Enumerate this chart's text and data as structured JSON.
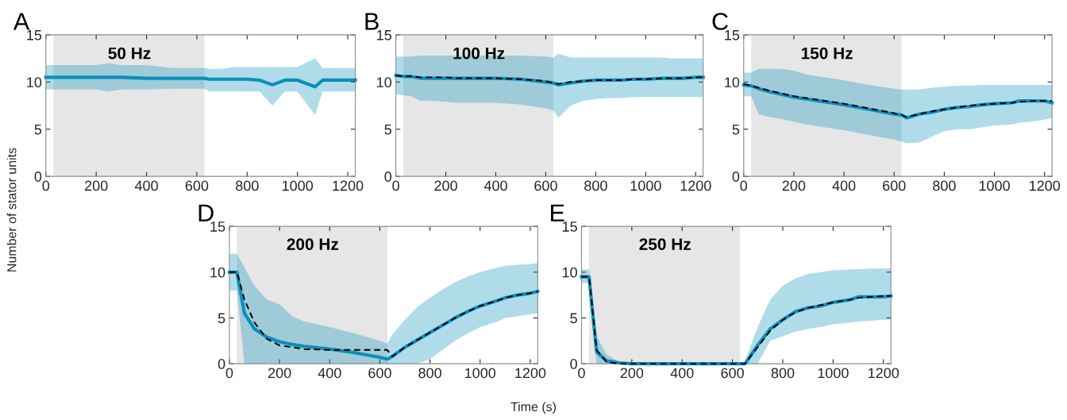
{
  "chart_data": [
    {
      "type": "line",
      "annotations": [
        "A",
        "50 Hz"
      ],
      "ylabel": "Number of stator units",
      "x": [
        0,
        30,
        60,
        100,
        150,
        200,
        250,
        300,
        400,
        500,
        600,
        630,
        650,
        700,
        750,
        800,
        850,
        900,
        950,
        1000,
        1070,
        1100,
        1150,
        1200,
        1230
      ],
      "xlim": [
        0,
        1230
      ],
      "ylim": [
        0,
        15
      ],
      "xticks": [
        0,
        200,
        400,
        600,
        800,
        1000,
        1200
      ],
      "yticks": [
        0,
        5,
        10,
        15
      ],
      "grid": false,
      "bands": [
        {
          "axis": "x",
          "from": 30,
          "to": 630,
          "color": "#e6e6e6"
        }
      ],
      "series": [
        {
          "color": "#0a8fba",
          "line_style": "solid",
          "values": [
            10.5,
            10.5,
            10.5,
            10.5,
            10.5,
            10.5,
            10.5,
            10.5,
            10.4,
            10.4,
            10.4,
            10.4,
            10.3,
            10.3,
            10.3,
            10.3,
            10.2,
            9.7,
            10.2,
            10.2,
            9.5,
            10.2,
            10.2,
            10.2,
            10.2
          ],
          "lower": [
            9.2,
            9.2,
            9.2,
            9.2,
            9.2,
            9.2,
            9.0,
            9.2,
            9.2,
            9.3,
            9.3,
            9.3,
            9.0,
            9.0,
            9.0,
            9.0,
            9.0,
            7.5,
            9.0,
            9.0,
            6.5,
            9.0,
            9.0,
            9.0,
            9.0
          ],
          "upper": [
            11.8,
            11.8,
            11.8,
            11.8,
            11.8,
            11.8,
            12.0,
            11.8,
            11.8,
            11.5,
            11.5,
            11.5,
            11.4,
            11.4,
            11.6,
            11.6,
            11.6,
            11.6,
            11.6,
            11.6,
            12.5,
            11.5,
            11.5,
            11.5,
            11.5
          ]
        }
      ]
    },
    {
      "type": "line",
      "annotations": [
        "B",
        "100 Hz"
      ],
      "x": [
        0,
        30,
        60,
        100,
        150,
        200,
        250,
        300,
        400,
        500,
        600,
        630,
        650,
        700,
        750,
        800,
        850,
        900,
        950,
        1000,
        1070,
        1100,
        1150,
        1200,
        1230
      ],
      "xlim": [
        0,
        1230
      ],
      "ylim": [
        0,
        15
      ],
      "xticks": [
        0,
        200,
        400,
        600,
        800,
        1000,
        1200
      ],
      "yticks": [
        0,
        5,
        10,
        15
      ],
      "grid": false,
      "bands": [
        {
          "axis": "x",
          "from": 30,
          "to": 630,
          "color": "#e6e6e6"
        }
      ],
      "series": [
        {
          "color": "#0a8fba",
          "line_style": "solid",
          "values": [
            10.7,
            10.6,
            10.6,
            10.4,
            10.4,
            10.4,
            10.4,
            10.4,
            10.4,
            10.3,
            10.0,
            9.9,
            9.7,
            9.9,
            10.1,
            10.2,
            10.2,
            10.2,
            10.3,
            10.3,
            10.4,
            10.4,
            10.4,
            10.5,
            10.5
          ],
          "lower": [
            8.7,
            8.6,
            8.5,
            8.0,
            8.0,
            7.9,
            7.8,
            7.8,
            7.8,
            7.6,
            7.2,
            7.0,
            6.2,
            7.5,
            8.0,
            8.2,
            8.3,
            8.3,
            8.4,
            8.4,
            8.4,
            8.4,
            8.4,
            8.4,
            8.4
          ],
          "upper": [
            12.7,
            12.7,
            12.7,
            12.8,
            12.8,
            12.8,
            12.8,
            12.8,
            12.8,
            12.8,
            12.7,
            12.6,
            13.0,
            12.6,
            12.6,
            12.6,
            12.6,
            12.6,
            12.6,
            12.6,
            12.6,
            12.5,
            12.5,
            12.5,
            12.5
          ]
        },
        {
          "color": "#000000",
          "line_style": "dashed",
          "values": [
            10.7,
            10.6,
            10.6,
            10.5,
            10.5,
            10.5,
            10.4,
            10.4,
            10.4,
            10.3,
            10.1,
            9.9,
            9.8,
            10.0,
            10.1,
            10.2,
            10.2,
            10.2,
            10.3,
            10.3,
            10.4,
            10.4,
            10.4,
            10.5,
            10.5
          ]
        }
      ]
    },
    {
      "type": "line",
      "annotations": [
        "C",
        "150 Hz"
      ],
      "x": [
        0,
        30,
        60,
        100,
        150,
        200,
        250,
        300,
        400,
        500,
        600,
        630,
        650,
        700,
        750,
        800,
        850,
        900,
        950,
        1000,
        1070,
        1100,
        1150,
        1200,
        1230
      ],
      "xlim": [
        0,
        1230
      ],
      "ylim": [
        0,
        15
      ],
      "xticks": [
        0,
        200,
        400,
        600,
        800,
        1000,
        1200
      ],
      "yticks": [
        0,
        5,
        10,
        15
      ],
      "grid": false,
      "bands": [
        {
          "axis": "x",
          "from": 30,
          "to": 630,
          "color": "#e6e6e6"
        }
      ],
      "series": [
        {
          "color": "#0a8fba",
          "line_style": "solid",
          "values": [
            9.7,
            9.6,
            9.3,
            9.0,
            8.7,
            8.4,
            8.2,
            8.0,
            7.6,
            7.1,
            6.6,
            6.5,
            6.2,
            6.6,
            6.8,
            7.1,
            7.3,
            7.4,
            7.6,
            7.7,
            7.8,
            8.0,
            8.0,
            8.0,
            7.8
          ],
          "lower": [
            8.5,
            8.5,
            6.6,
            6.3,
            6.1,
            5.8,
            5.5,
            5.3,
            4.9,
            4.4,
            3.9,
            3.7,
            3.5,
            3.6,
            4.2,
            4.8,
            5.0,
            5.0,
            5.2,
            5.4,
            5.5,
            5.7,
            5.8,
            6.0,
            6.2
          ],
          "upper": [
            11.0,
            11.0,
            11.4,
            11.4,
            11.4,
            11.2,
            10.8,
            10.6,
            10.2,
            9.7,
            9.3,
            9.2,
            9.2,
            9.2,
            9.4,
            9.5,
            9.6,
            9.6,
            9.7,
            9.7,
            9.7,
            9.7,
            9.7,
            9.7,
            9.7
          ]
        },
        {
          "color": "#000000",
          "line_style": "dashed",
          "values": [
            9.8,
            9.6,
            9.4,
            9.1,
            8.8,
            8.5,
            8.3,
            8.1,
            7.7,
            7.2,
            6.7,
            6.5,
            6.3,
            6.6,
            6.9,
            7.1,
            7.3,
            7.5,
            7.6,
            7.7,
            7.8,
            7.9,
            8.0,
            8.0,
            8.0
          ]
        }
      ]
    },
    {
      "type": "line",
      "annotations": [
        "D",
        "200 Hz"
      ],
      "xlabel": "Time (s)",
      "x": [
        0,
        30,
        60,
        100,
        150,
        200,
        250,
        300,
        400,
        500,
        600,
        630,
        650,
        700,
        750,
        800,
        850,
        900,
        950,
        1000,
        1070,
        1100,
        1150,
        1200,
        1230
      ],
      "xlim": [
        0,
        1230
      ],
      "ylim": [
        0,
        15
      ],
      "xticks": [
        0,
        200,
        400,
        600,
        800,
        1000,
        1200
      ],
      "yticks": [
        0,
        5,
        10,
        15
      ],
      "grid": false,
      "bands": [
        {
          "axis": "x",
          "from": 30,
          "to": 630,
          "color": "#e6e6e6"
        }
      ],
      "series": [
        {
          "color": "#0a8fba",
          "line_style": "solid",
          "values": [
            10,
            10,
            5.5,
            3.8,
            2.9,
            2.4,
            2.1,
            1.9,
            1.6,
            1.2,
            0.7,
            0.5,
            0.8,
            1.8,
            2.6,
            3.4,
            4.2,
            5.0,
            5.7,
            6.3,
            6.9,
            7.2,
            7.5,
            7.7,
            7.9
          ],
          "lower": [
            8,
            8,
            0,
            0,
            0,
            0,
            0,
            0,
            0,
            0,
            0,
            0,
            0,
            0,
            0,
            0.5,
            1.5,
            2.5,
            3.3,
            4.0,
            4.6,
            5.0,
            5.2,
            5.4,
            5.5
          ],
          "upper": [
            12,
            12,
            10.5,
            8.5,
            7.0,
            6.5,
            5.2,
            4.6,
            4.0,
            3.3,
            2.5,
            2.2,
            3.2,
            4.8,
            6.2,
            7.2,
            8.1,
            8.9,
            9.5,
            10.0,
            10.5,
            10.7,
            10.8,
            10.9,
            11.0
          ]
        },
        {
          "color": "#000000",
          "line_style": "dashed",
          "values": [
            10,
            10,
            7.0,
            4.5,
            2.7,
            2.0,
            1.8,
            1.6,
            1.5,
            1.5,
            1.5,
            1.5,
            0.8,
            1.8,
            2.6,
            3.4,
            4.2,
            5.0,
            5.7,
            6.3,
            6.9,
            7.2,
            7.5,
            7.7,
            7.9
          ]
        }
      ]
    },
    {
      "type": "line",
      "annotations": [
        "E",
        "250 Hz"
      ],
      "x": [
        0,
        30,
        60,
        100,
        150,
        200,
        250,
        300,
        400,
        500,
        600,
        630,
        650,
        700,
        750,
        800,
        850,
        900,
        950,
        1000,
        1070,
        1100,
        1150,
        1200,
        1230
      ],
      "xlim": [
        0,
        1230
      ],
      "ylim": [
        0,
        15
      ],
      "xticks": [
        0,
        200,
        400,
        600,
        800,
        1000,
        1200
      ],
      "yticks": [
        0,
        5,
        10,
        15
      ],
      "grid": false,
      "bands": [
        {
          "axis": "x",
          "from": 30,
          "to": 630,
          "color": "#e6e6e6"
        }
      ],
      "series": [
        {
          "color": "#0a8fba",
          "line_style": "solid",
          "values": [
            9.5,
            9.5,
            1.3,
            0.3,
            0.1,
            0,
            0,
            0,
            0,
            0,
            0,
            0,
            0,
            2.0,
            3.8,
            4.8,
            5.7,
            6.1,
            6.3,
            6.7,
            7.0,
            7.3,
            7.3,
            7.3,
            7.4
          ],
          "lower": [
            8.8,
            8.8,
            0,
            0,
            0,
            0,
            0,
            0,
            0,
            0,
            0,
            0,
            0,
            0,
            2.5,
            3.0,
            3.5,
            3.8,
            4.0,
            4.3,
            4.5,
            4.6,
            4.7,
            4.8,
            4.8
          ],
          "upper": [
            10.3,
            10.3,
            3.0,
            1.0,
            0.2,
            0,
            0,
            0,
            0,
            0,
            0,
            0,
            0.3,
            4.0,
            7.0,
            8.5,
            9.3,
            9.8,
            10.0,
            10.2,
            10.3,
            10.3,
            10.4,
            10.4,
            10.4
          ]
        },
        {
          "color": "#000000",
          "line_style": "dashed",
          "values": [
            9.5,
            9.5,
            1.5,
            0.2,
            0,
            0,
            0,
            0,
            0,
            0,
            0,
            0,
            0,
            1.8,
            3.6,
            4.8,
            5.6,
            6.1,
            6.4,
            6.7,
            7.0,
            7.2,
            7.3,
            7.4,
            7.4
          ]
        }
      ]
    }
  ]
}
